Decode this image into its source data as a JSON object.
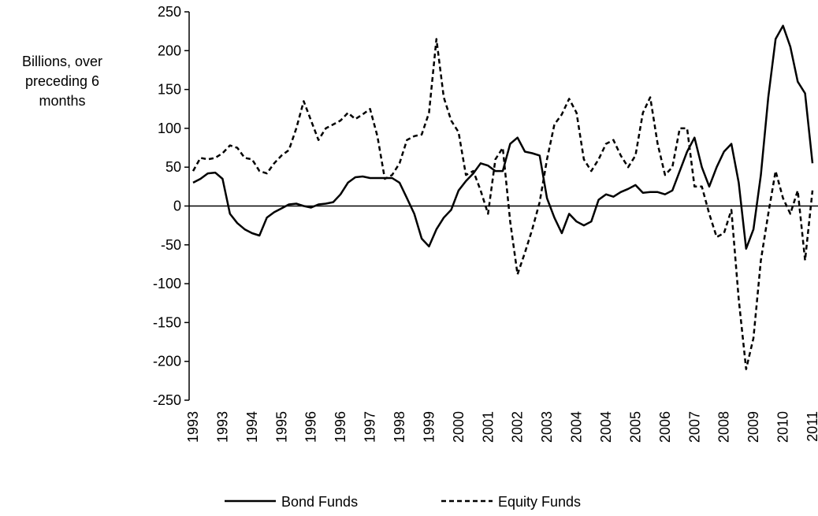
{
  "chart_data": {
    "type": "line",
    "y_label": "Billions, over preceding 6 months",
    "categories": [
      "1993",
      null,
      null,
      null,
      "1993",
      null,
      null,
      null,
      "1994",
      null,
      null,
      null,
      "1995",
      null,
      null,
      null,
      "1996",
      null,
      null,
      null,
      "1996",
      null,
      null,
      null,
      "1997",
      null,
      null,
      null,
      "1998",
      null,
      null,
      null,
      "1999",
      null,
      null,
      null,
      "2000",
      null,
      null,
      null,
      "2001",
      null,
      null,
      null,
      "2002",
      null,
      null,
      null,
      "2003",
      null,
      null,
      null,
      "2004",
      null,
      null,
      null,
      "2004",
      null,
      null,
      null,
      "2005",
      null,
      null,
      null,
      "2006",
      null,
      null,
      null,
      "2007",
      null,
      null,
      null,
      "2008",
      null,
      null,
      null,
      "2009",
      null,
      null,
      null,
      "2010",
      null,
      null,
      null,
      "2011"
    ],
    "series": [
      {
        "name": "Bond Funds",
        "color": "#000000",
        "dash": false,
        "values": [
          30,
          35,
          42,
          43,
          35,
          -10,
          -22,
          -30,
          -35,
          -38,
          -15,
          -8,
          -3,
          2,
          3,
          0,
          -2,
          2,
          3,
          5,
          15,
          30,
          37,
          38,
          36,
          36,
          36,
          36,
          30,
          10,
          -10,
          -42,
          -52,
          -30,
          -15,
          -5,
          20,
          32,
          42,
          55,
          52,
          45,
          45,
          80,
          88,
          70,
          68,
          65,
          10,
          -15,
          -35,
          -10,
          -20,
          -25,
          -20,
          8,
          15,
          12,
          18,
          22,
          27,
          17,
          18,
          18,
          15,
          20,
          45,
          70,
          88,
          50,
          25,
          50,
          70,
          80,
          30,
          -55,
          -30,
          40,
          140,
          215,
          232,
          205,
          160,
          145,
          55
        ]
      },
      {
        "name": "Equity Funds",
        "color": "#000000",
        "dash": true,
        "values": [
          45,
          62,
          60,
          62,
          68,
          78,
          75,
          62,
          60,
          45,
          42,
          55,
          65,
          72,
          100,
          135,
          110,
          85,
          100,
          105,
          110,
          120,
          112,
          118,
          125,
          90,
          35,
          40,
          55,
          85,
          90,
          92,
          120,
          215,
          140,
          110,
          95,
          40,
          45,
          20,
          -10,
          60,
          75,
          -20,
          -88,
          -60,
          -30,
          5,
          60,
          105,
          118,
          138,
          120,
          60,
          45,
          60,
          80,
          85,
          65,
          50,
          65,
          120,
          140,
          80,
          40,
          50,
          100,
          100,
          25,
          25,
          -10,
          -40,
          -35,
          -5,
          -120,
          -210,
          -170,
          -70,
          -10,
          45,
          10,
          -10,
          20,
          -70,
          20
        ]
      }
    ],
    "ylim": [
      -250,
      250
    ],
    "yticks": [
      -250,
      -200,
      -150,
      -100,
      -50,
      0,
      50,
      100,
      150,
      200,
      250
    ],
    "grid": false,
    "legend": "bottom"
  }
}
